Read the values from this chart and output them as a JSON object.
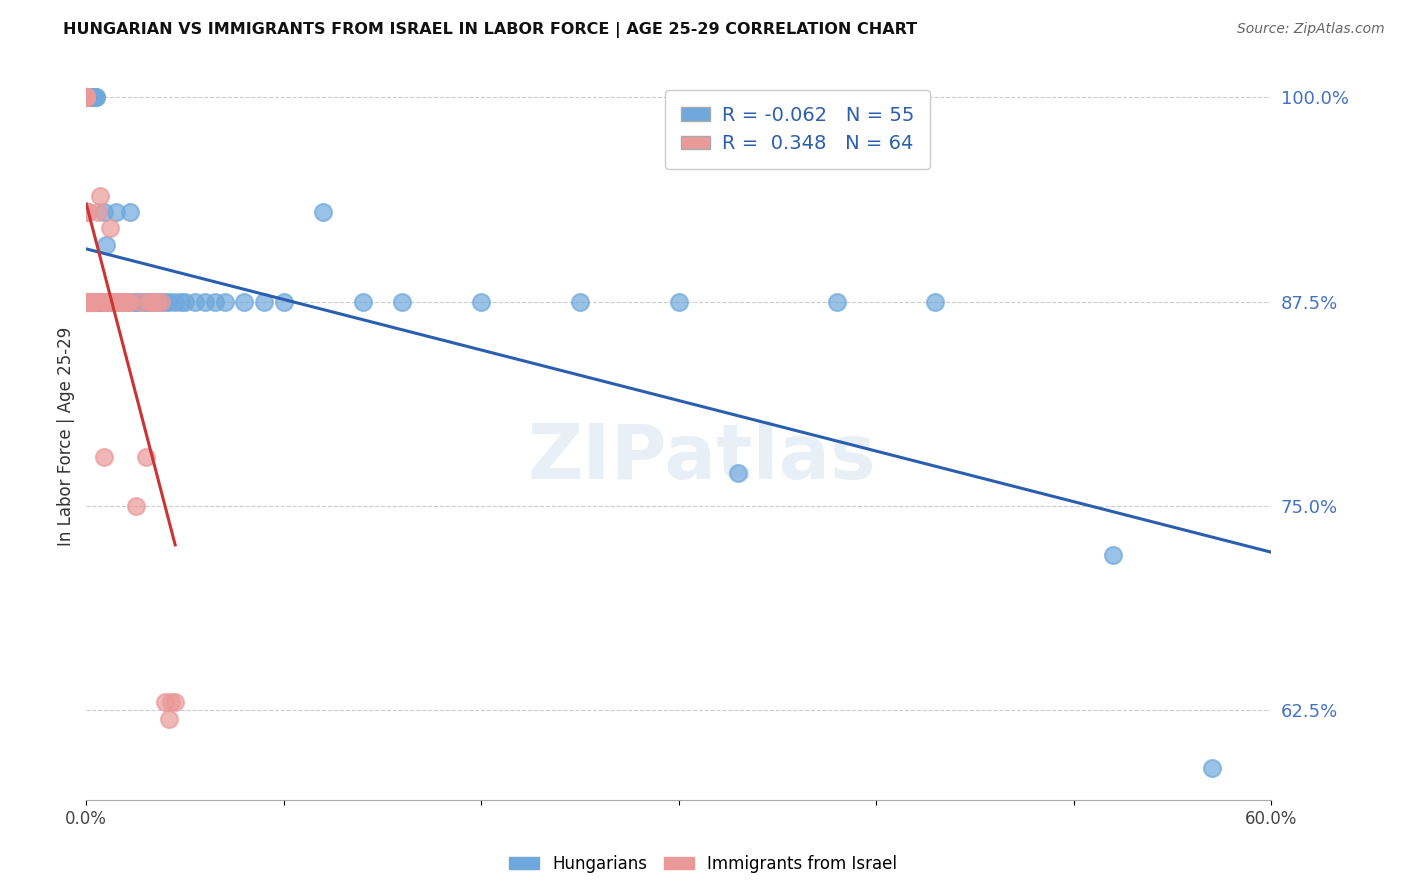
{
  "title": "HUNGARIAN VS IMMIGRANTS FROM ISRAEL IN LABOR FORCE | AGE 25-29 CORRELATION CHART",
  "source": "Source: ZipAtlas.com",
  "ylabel": "In Labor Force | Age 25-29",
  "xlim": [
    0.0,
    0.6
  ],
  "ylim": [
    0.57,
    1.015
  ],
  "xticks": [
    0.0,
    0.1,
    0.2,
    0.3,
    0.4,
    0.5,
    0.6
  ],
  "xtick_labels": [
    "0.0%",
    "",
    "",
    "",
    "",
    "",
    "60.0%"
  ],
  "ytick_labels_right": [
    "100.0%",
    "87.5%",
    "75.0%",
    "62.5%"
  ],
  "yticks_right": [
    1.0,
    0.875,
    0.75,
    0.625
  ],
  "legend_r_blue": "-0.062",
  "legend_n_blue": "55",
  "legend_r_pink": "0.348",
  "legend_n_pink": "64",
  "blue_color": "#6fa8dc",
  "pink_color": "#ea9999",
  "blue_line_color": "#2b5fad",
  "pink_line_color": "#cc3333",
  "grid_color": "#cccccc",
  "watermark": "ZIPatlas",
  "blue_x": [
    0.002,
    0.003,
    0.004,
    0.005,
    0.005,
    0.006,
    0.007,
    0.007,
    0.008,
    0.009,
    0.01,
    0.01,
    0.011,
    0.012,
    0.013,
    0.013,
    0.015,
    0.015,
    0.016,
    0.018,
    0.02,
    0.021,
    0.022,
    0.024,
    0.025,
    0.026,
    0.028,
    0.03,
    0.032,
    0.034,
    0.036,
    0.038,
    0.04,
    0.042,
    0.045,
    0.048,
    0.05,
    0.055,
    0.06,
    0.065,
    0.07,
    0.08,
    0.09,
    0.1,
    0.12,
    0.14,
    0.16,
    0.2,
    0.25,
    0.3,
    0.33,
    0.38,
    0.43,
    0.52,
    0.57
  ],
  "blue_y": [
    1.0,
    1.0,
    1.0,
    1.0,
    1.0,
    0.875,
    0.875,
    0.875,
    0.875,
    0.93,
    0.875,
    0.91,
    0.875,
    0.875,
    0.875,
    0.875,
    0.93,
    0.875,
    0.875,
    0.875,
    0.875,
    0.875,
    0.93,
    0.875,
    0.875,
    0.875,
    0.875,
    0.875,
    0.875,
    0.875,
    0.875,
    0.875,
    0.875,
    0.875,
    0.875,
    0.875,
    0.875,
    0.875,
    0.875,
    0.875,
    0.875,
    0.875,
    0.875,
    0.875,
    0.93,
    0.875,
    0.875,
    0.875,
    0.875,
    0.875,
    0.77,
    0.875,
    0.875,
    0.72,
    0.59
  ],
  "pink_x": [
    0.0,
    0.0,
    0.0,
    0.0,
    0.0,
    0.0,
    0.0,
    0.0,
    0.0,
    0.0,
    0.0,
    0.0,
    0.0,
    0.0,
    0.0,
    0.0,
    0.0,
    0.001,
    0.001,
    0.001,
    0.001,
    0.001,
    0.002,
    0.002,
    0.002,
    0.002,
    0.003,
    0.003,
    0.004,
    0.004,
    0.004,
    0.005,
    0.005,
    0.006,
    0.007,
    0.008,
    0.009,
    0.009,
    0.01,
    0.011,
    0.012,
    0.012,
    0.013,
    0.014,
    0.015,
    0.016,
    0.017,
    0.018,
    0.019,
    0.02,
    0.021,
    0.022,
    0.025,
    0.027,
    0.03,
    0.032,
    0.033,
    0.034,
    0.036,
    0.038,
    0.04,
    0.042,
    0.043,
    0.045
  ],
  "pink_y": [
    1.0,
    1.0,
    1.0,
    1.0,
    1.0,
    1.0,
    1.0,
    1.0,
    1.0,
    1.0,
    1.0,
    1.0,
    0.875,
    0.875,
    0.875,
    0.875,
    0.875,
    0.93,
    0.875,
    0.875,
    0.875,
    0.93,
    0.875,
    0.875,
    0.875,
    0.875,
    0.875,
    0.875,
    0.875,
    0.875,
    0.875,
    0.875,
    0.875,
    0.93,
    0.94,
    0.875,
    0.78,
    0.875,
    0.875,
    0.875,
    0.875,
    0.92,
    0.875,
    0.875,
    0.875,
    0.875,
    0.875,
    0.875,
    0.875,
    0.875,
    0.875,
    0.875,
    0.75,
    0.875,
    0.78,
    0.875,
    0.875,
    0.875,
    0.875,
    0.875,
    0.63,
    0.62,
    0.63,
    0.63
  ]
}
